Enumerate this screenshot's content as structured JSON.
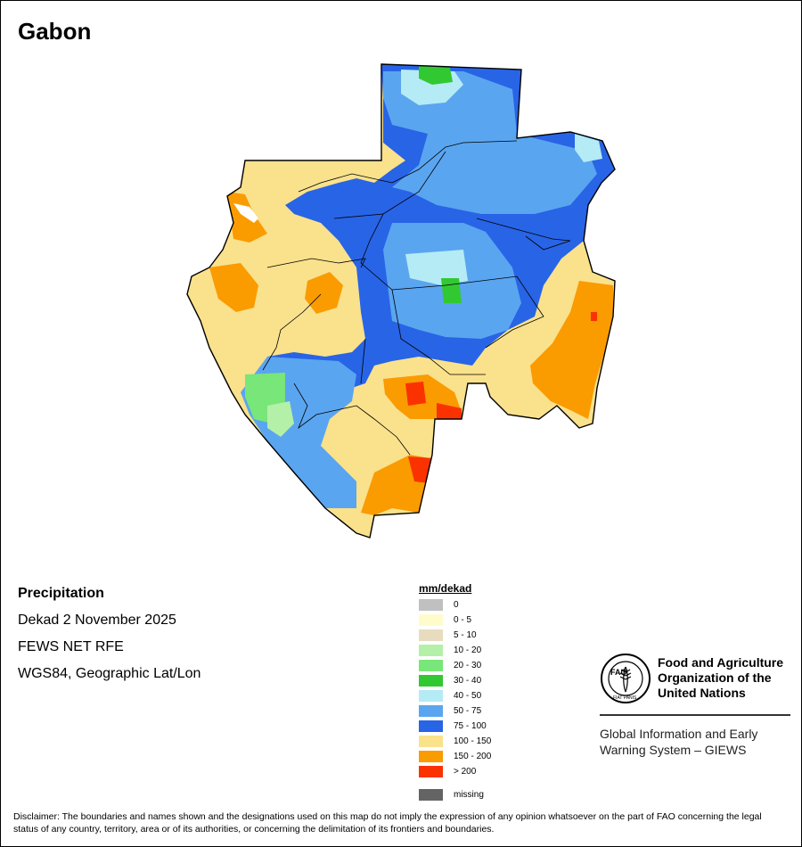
{
  "title": "Gabon",
  "info": {
    "heading": "Precipitation",
    "period": "Dekad 2 November 2025",
    "source": "FEWS NET RFE",
    "projection": "WGS84, Geographic Lat/Lon"
  },
  "legend": {
    "unit": "mm/dekad",
    "classes": [
      {
        "label": "0",
        "color": "#c0c0c0"
      },
      {
        "label": "0 - 5",
        "color": "#fffccc"
      },
      {
        "label": "5 - 10",
        "color": "#e8dcbe"
      },
      {
        "label": "10 - 20",
        "color": "#b4f0a8"
      },
      {
        "label": "20 - 30",
        "color": "#78e678"
      },
      {
        "label": "30 - 40",
        "color": "#32c832"
      },
      {
        "label": "40 - 50",
        "color": "#b4ebf5"
      },
      {
        "label": "50 - 75",
        "color": "#5aa5f0"
      },
      {
        "label": "75 - 100",
        "color": "#2864e6"
      },
      {
        "label": "100 - 150",
        "color": "#fae18c"
      },
      {
        "label": "150 - 200",
        "color": "#fa9b00"
      },
      {
        "label": "> 200",
        "color": "#fa3200"
      }
    ],
    "missing": {
      "label": "missing",
      "color": "#646464"
    }
  },
  "organization": {
    "name_line1": "Food and Agriculture",
    "name_line2": "Organization of the",
    "name_line3": "United Nations",
    "logo_text_top": "FAO",
    "logo_text_bottom": "FIAT PANIS"
  },
  "system": {
    "line1": "Global Information and Early",
    "line2": "Warning System – GIEWS"
  },
  "disclaimer": "Disclaimer: The boundaries and names shown and the designations used on this map do not imply the expression of any opinion whatsoever on the part of FAO concerning the legal status of any country, territory, area or of its authorities, or concerning the delimitation of its frontiers and boundaries."
}
